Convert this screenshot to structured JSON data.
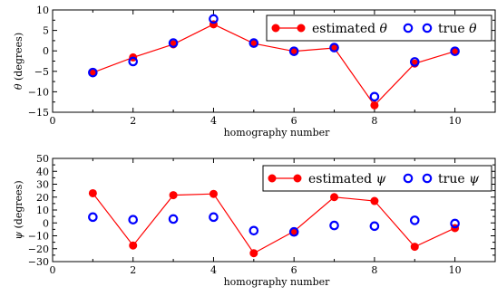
{
  "chart_data": [
    {
      "type": "line",
      "x": [
        1,
        2,
        3,
        4,
        5,
        6,
        7,
        8,
        9,
        10
      ],
      "series": [
        {
          "name": "estimated θ",
          "style": "line-with-filled-circles",
          "color": "#ff0000",
          "values": [
            -5.3,
            -1.6,
            1.6,
            6.5,
            1.8,
            -0.1,
            0.7,
            -13.3,
            -3.1,
            -0.1
          ]
        },
        {
          "name": "true θ",
          "style": "open-circles",
          "color": "#0000ff",
          "values": [
            -5.3,
            -2.6,
            1.9,
            7.8,
            1.9,
            -0.1,
            0.8,
            -11.2,
            -2.7,
            -0.1
          ]
        }
      ],
      "xlabel": "homography number",
      "ylabel": "θ (degrees)",
      "xlim": [
        0,
        11
      ],
      "ylim": [
        -15,
        10
      ],
      "xticks": [
        0,
        2,
        4,
        6,
        8,
        10
      ],
      "yticks": [
        -15,
        -10,
        -5,
        0,
        5,
        10
      ],
      "legend": "top-right",
      "grid": false
    },
    {
      "type": "line",
      "x": [
        1,
        2,
        3,
        4,
        5,
        6,
        7,
        8,
        9,
        10
      ],
      "series": [
        {
          "name": "estimated ψ",
          "style": "line-with-filled-circles",
          "color": "#ff0000",
          "values": [
            23,
            -17.5,
            21.5,
            22.5,
            -23.5,
            -6.5,
            20,
            17,
            -18.5,
            -4
          ]
        },
        {
          "name": "true ψ",
          "style": "open-circles",
          "color": "#0000ff",
          "values": [
            4.5,
            2.5,
            3,
            4.5,
            -6,
            -7,
            -2,
            -2.5,
            2,
            -0.5
          ]
        }
      ],
      "xlabel": "homography number",
      "ylabel": "ψ (degrees)",
      "xlim": [
        0,
        11
      ],
      "ylim": [
        -30,
        50
      ],
      "xticks": [
        0,
        2,
        4,
        6,
        8,
        10
      ],
      "yticks": [
        -30,
        -20,
        -10,
        0,
        10,
        20,
        30,
        40,
        50
      ],
      "legend": "top-right",
      "grid": false
    }
  ]
}
